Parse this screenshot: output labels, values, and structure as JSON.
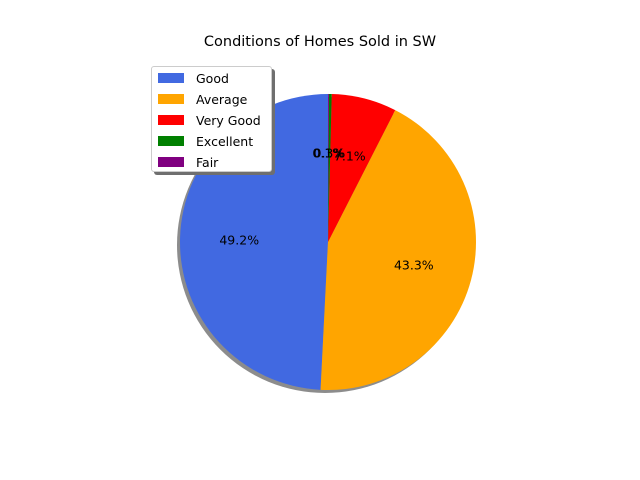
{
  "chart_data": {
    "type": "pie",
    "title": "Conditions of Homes Sold in SW",
    "slices": [
      {
        "label": "Good",
        "value": 49.2,
        "pct_label": "49.2%",
        "color": "#4169e1"
      },
      {
        "label": "Average",
        "value": 43.3,
        "pct_label": "43.3%",
        "color": "#ffa500"
      },
      {
        "label": "Very Good",
        "value": 7.1,
        "pct_label": "7.1%",
        "color": "#ff0000"
      },
      {
        "label": "Excellent",
        "value": 0.3,
        "pct_label": "0.3%",
        "color": "#008000"
      },
      {
        "label": "Fair",
        "value": 0.1,
        "pct_label": "0.1%",
        "color": "#800080"
      }
    ],
    "start_angle_deg": 90,
    "shadow": true,
    "legend": "upper-left"
  }
}
